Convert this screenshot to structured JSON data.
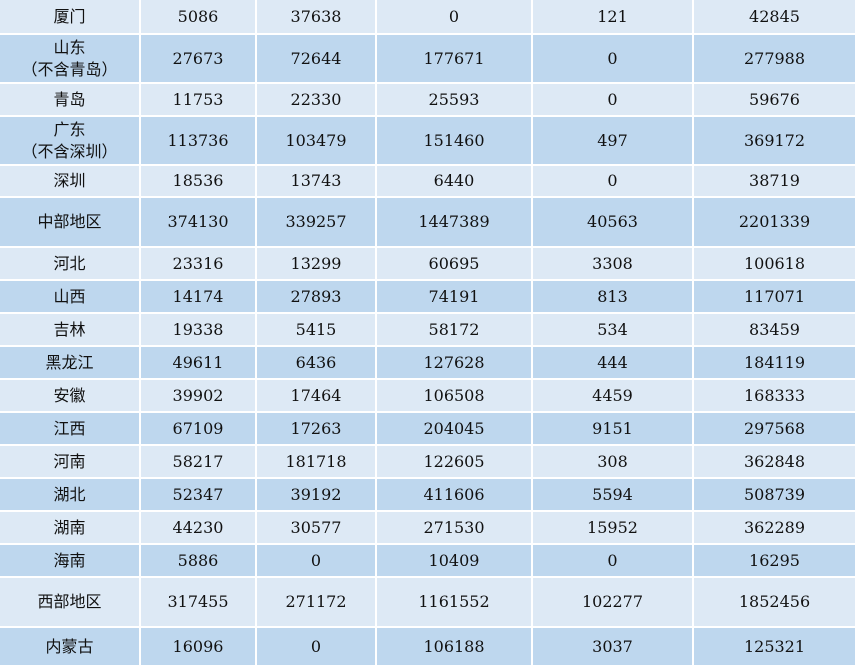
{
  "table": {
    "rows": [
      [
        [
          "厦门"
        ],
        5086,
        37638,
        0,
        121,
        42845
      ],
      [
        [
          "山东",
          "（不含青岛）"
        ],
        27673,
        72644,
        177671,
        0,
        277988
      ],
      [
        [
          "青岛"
        ],
        11753,
        22330,
        25593,
        0,
        59676
      ],
      [
        [
          "广东",
          "（不含深圳）"
        ],
        113736,
        103479,
        151460,
        497,
        369172
      ],
      [
        [
          "深圳"
        ],
        18536,
        13743,
        6440,
        0,
        38719
      ],
      [
        [
          "中部地区"
        ],
        374130,
        339257,
        1447389,
        40563,
        2201339
      ],
      [
        [
          "河北"
        ],
        23316,
        13299,
        60695,
        3308,
        100618
      ],
      [
        [
          "山西"
        ],
        14174,
        27893,
        74191,
        813,
        117071
      ],
      [
        [
          "吉林"
        ],
        19338,
        5415,
        58172,
        534,
        83459
      ],
      [
        [
          "黑龙江"
        ],
        49611,
        6436,
        127628,
        444,
        184119
      ],
      [
        [
          "安徽"
        ],
        39902,
        17464,
        106508,
        4459,
        168333
      ],
      [
        [
          "江西"
        ],
        67109,
        17263,
        204045,
        9151,
        297568
      ],
      [
        [
          "河南"
        ],
        58217,
        181718,
        122605,
        308,
        362848
      ],
      [
        [
          "湖北"
        ],
        52347,
        39192,
        411606,
        5594,
        508739
      ],
      [
        [
          "湖南"
        ],
        44230,
        30577,
        271530,
        15952,
        362289
      ],
      [
        [
          "海南"
        ],
        5886,
        0,
        10409,
        0,
        16295
      ],
      [
        [
          "西部地区"
        ],
        317455,
        271172,
        1161552,
        102277,
        1852456
      ],
      [
        [
          "内蒙古"
        ],
        16096,
        0,
        106188,
        3037,
        125321
      ]
    ]
  }
}
